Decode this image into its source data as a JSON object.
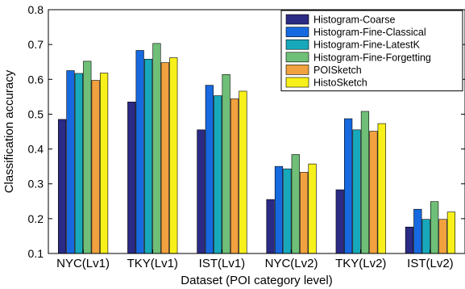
{
  "chart_data": {
    "type": "bar",
    "title": "",
    "xlabel": "Dataset (POI category level)",
    "ylabel": "Classification accuracy",
    "ylim": [
      0.1,
      0.8
    ],
    "yticks": [
      "0.1",
      "0.2",
      "0.3",
      "0.4",
      "0.5",
      "0.6",
      "0.7",
      "0.8"
    ],
    "grid": false,
    "legend_position": "top-right",
    "categories": [
      "NYC(Lv1)",
      "TKY(Lv1)",
      "IST(Lv1)",
      "NYC(Lv2)",
      "TKY(Lv2)",
      "IST(Lv2)"
    ],
    "series": [
      {
        "name": "Histogram-Coarse",
        "color": "#2b2a84",
        "values": [
          0.485,
          0.535,
          0.455,
          0.255,
          0.283,
          0.176
        ]
      },
      {
        "name": "Histogram-Fine-Classical",
        "color": "#1769e0",
        "values": [
          0.625,
          0.683,
          0.583,
          0.35,
          0.487,
          0.227
        ]
      },
      {
        "name": "Histogram-Fine-LatestK",
        "color": "#17a9bb",
        "values": [
          0.617,
          0.658,
          0.553,
          0.343,
          0.455,
          0.198
        ]
      },
      {
        "name": "Histogram-Fine-Forgetting",
        "color": "#6fbf78",
        "values": [
          0.652,
          0.703,
          0.614,
          0.384,
          0.508,
          0.249
        ]
      },
      {
        "name": "POISketch",
        "color": "#f1a13f",
        "values": [
          0.597,
          0.648,
          0.544,
          0.333,
          0.451,
          0.198
        ]
      },
      {
        "name": "HistoSketch",
        "color": "#f7f01a",
        "values": [
          0.618,
          0.662,
          0.566,
          0.357,
          0.473,
          0.219
        ]
      }
    ]
  }
}
